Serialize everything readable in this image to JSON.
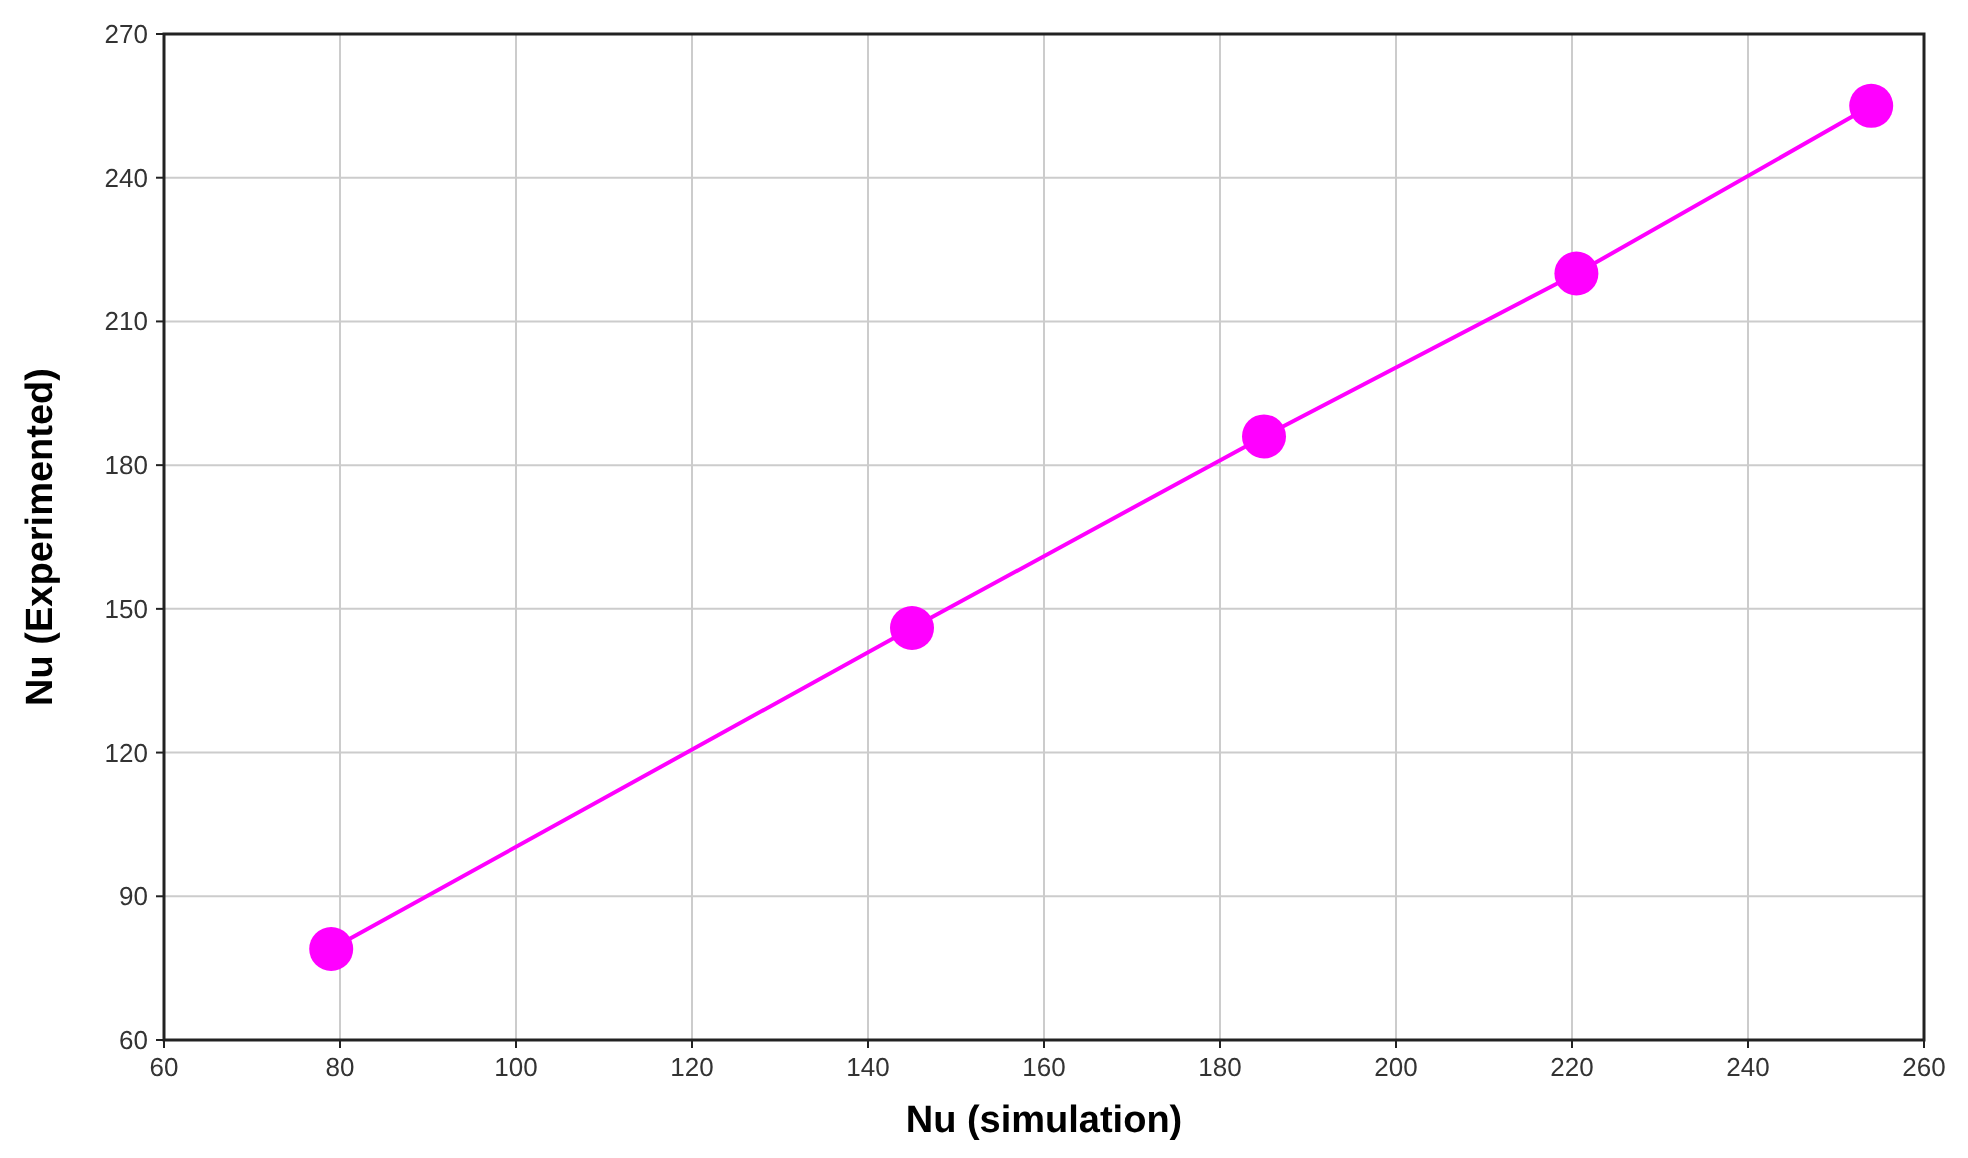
{
  "chart_data": {
    "type": "line",
    "xlabel": "Nu (simulation)",
    "ylabel": "Nu (Experimented)",
    "x": [
      79,
      145,
      185,
      220.5,
      254
    ],
    "series": [
      {
        "color": "#ff00ff",
        "values": [
          79,
          146,
          186,
          220,
          255
        ]
      }
    ],
    "xlim": [
      60,
      260
    ],
    "xticks": [
      60,
      80,
      100,
      120,
      140,
      160,
      180,
      200,
      220,
      240,
      260
    ],
    "ylim": [
      60,
      270
    ],
    "yticks": [
      60,
      90,
      120,
      150,
      180,
      210,
      240,
      270
    ],
    "grid": true,
    "marker": "circle",
    "line_style": "solid"
  }
}
